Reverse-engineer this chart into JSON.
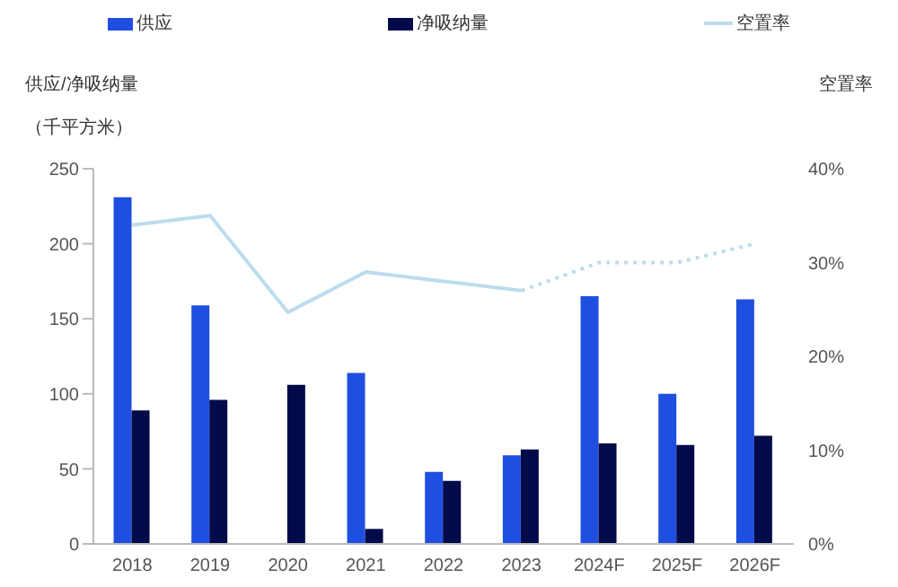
{
  "chart_data": {
    "type": "bar",
    "categories": [
      "2018",
      "2019",
      "2020",
      "2021",
      "2022",
      "2023",
      "2024F",
      "2025F",
      "2026F"
    ],
    "ylabel": "供应/净吸纳量",
    "annotations": [
      "（千平方米）"
    ],
    "y2label": "空置率",
    "ylim": [
      0,
      250
    ],
    "yticks": [
      0,
      50,
      100,
      150,
      200,
      250
    ],
    "y2lim": [
      0,
      40
    ],
    "y2ticks": [
      {
        "value": 0,
        "label": "0%"
      },
      {
        "value": 10,
        "label": "10%"
      },
      {
        "value": 20,
        "label": "20%"
      },
      {
        "value": 30,
        "label": "30%"
      },
      {
        "value": 40,
        "label": "40%"
      }
    ],
    "grid": false,
    "legend": "top",
    "series": [
      {
        "name": "供应",
        "color": "#1f4fe0",
        "values": [
          231,
          159,
          0,
          114,
          48,
          59,
          165,
          100,
          163
        ]
      },
      {
        "name": "净吸纳量",
        "color": "#020a4a",
        "values": [
          89,
          96,
          106,
          10,
          42,
          63,
          67,
          66,
          72
        ]
      },
      {
        "name": "空置率",
        "type": "line",
        "axis": "y2",
        "color": "#bcdcee",
        "line_style": "solid",
        "marker": "none",
        "values": [
          34,
          35,
          24.7,
          29,
          28,
          27,
          null,
          null,
          null
        ]
      },
      {
        "type": "line",
        "axis": "y2",
        "color": "#bcdcee",
        "line_style": "dotted",
        "marker": "none",
        "values": [
          null,
          null,
          null,
          null,
          null,
          27,
          30,
          30,
          32
        ]
      }
    ]
  }
}
